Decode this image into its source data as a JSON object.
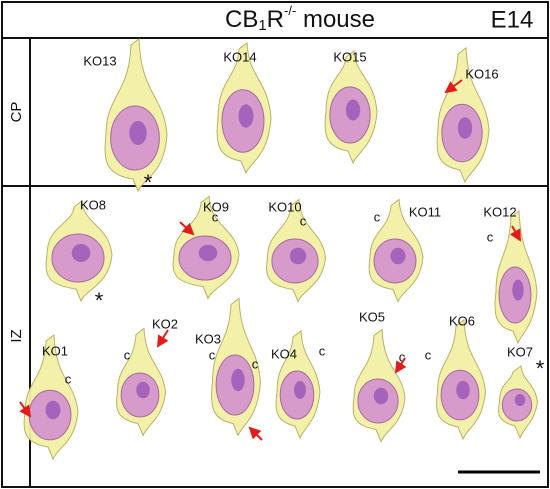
{
  "header": {
    "title_main": "CB",
    "title_sub": "1",
    "title_mid": "R",
    "title_sup": "-/-",
    "title_end": " mouse",
    "stage": "E14"
  },
  "panels": [
    {
      "label": "CP",
      "cells": [
        "KO13",
        "KO14",
        "KO15",
        "KO16"
      ]
    },
    {
      "label": "IZ",
      "cells": [
        "KO8",
        "KO9",
        "KO10",
        "KO11",
        "KO12",
        "KO1",
        "KO2",
        "KO3",
        "KO4",
        "KO5",
        "KO6",
        "KO7"
      ]
    }
  ],
  "markers": {
    "cilium": "c",
    "asterisk": "*"
  }
}
